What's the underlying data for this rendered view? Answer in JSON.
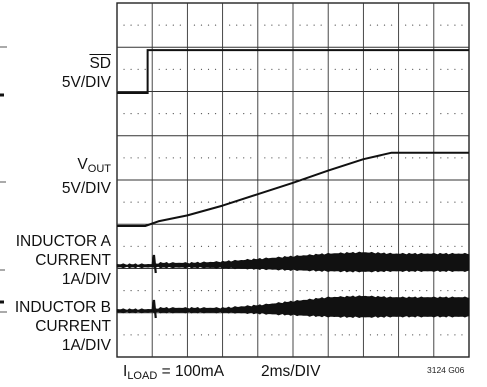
{
  "chart_data": {
    "type": "line",
    "title": "",
    "grid": true,
    "channels": [
      {
        "name": "SD",
        "scale": "5V/DIV",
        "label_lines": [
          "5V/DIV"
        ]
      },
      {
        "name": "VOUT",
        "name_base": "V",
        "name_sub": "OUT",
        "scale": "5V/DIV",
        "label_lines": [
          "5V/DIV"
        ]
      },
      {
        "name": "INDUCTOR A CURRENT",
        "scale": "1A/DIV",
        "label_lines": [
          "INDUCTOR A",
          "CURRENT",
          "1A/DIV"
        ]
      },
      {
        "name": "INDUCTOR B CURRENT",
        "scale": "1A/DIV",
        "label_lines": [
          "INDUCTOR B",
          "CURRENT",
          "1A/DIV"
        ]
      }
    ],
    "x_divisions": 10,
    "y_divisions": 8,
    "timebase": "2ms/DIV",
    "time_ms": [
      0,
      0.8,
      1.2,
      2,
      3,
      4,
      5,
      6,
      7,
      7.8,
      8,
      9,
      10
    ],
    "series": [
      {
        "name": "SD",
        "unit": "V",
        "values": [
          0,
          0,
          5,
          5,
          5,
          5,
          5,
          5,
          5,
          5,
          5,
          5,
          5
        ]
      },
      {
        "name": "VOUT",
        "unit": "V",
        "values": [
          0,
          0,
          0.6,
          1.3,
          2.5,
          3.9,
          5.3,
          6.8,
          8.2,
          9.0,
          9.0,
          9.0,
          9.0
        ]
      },
      {
        "name": "INDUCTOR A CURRENT",
        "unit": "A",
        "values": [
          0,
          0,
          0.1,
          0.1,
          0.15,
          0.25,
          0.35,
          0.45,
          0.5,
          0.45,
          0.45,
          0.45,
          0.45
        ]
      },
      {
        "name": "INDUCTOR B CURRENT",
        "unit": "A",
        "values": [
          0,
          0,
          0.1,
          0.1,
          0.1,
          0.2,
          0.35,
          0.5,
          0.55,
          0.5,
          0.5,
          0.5,
          0.5
        ]
      }
    ],
    "conditions": {
      "base": "I",
      "sub": "LOAD",
      "value": " = 100mA"
    },
    "figure_ref": "3124 G06"
  }
}
